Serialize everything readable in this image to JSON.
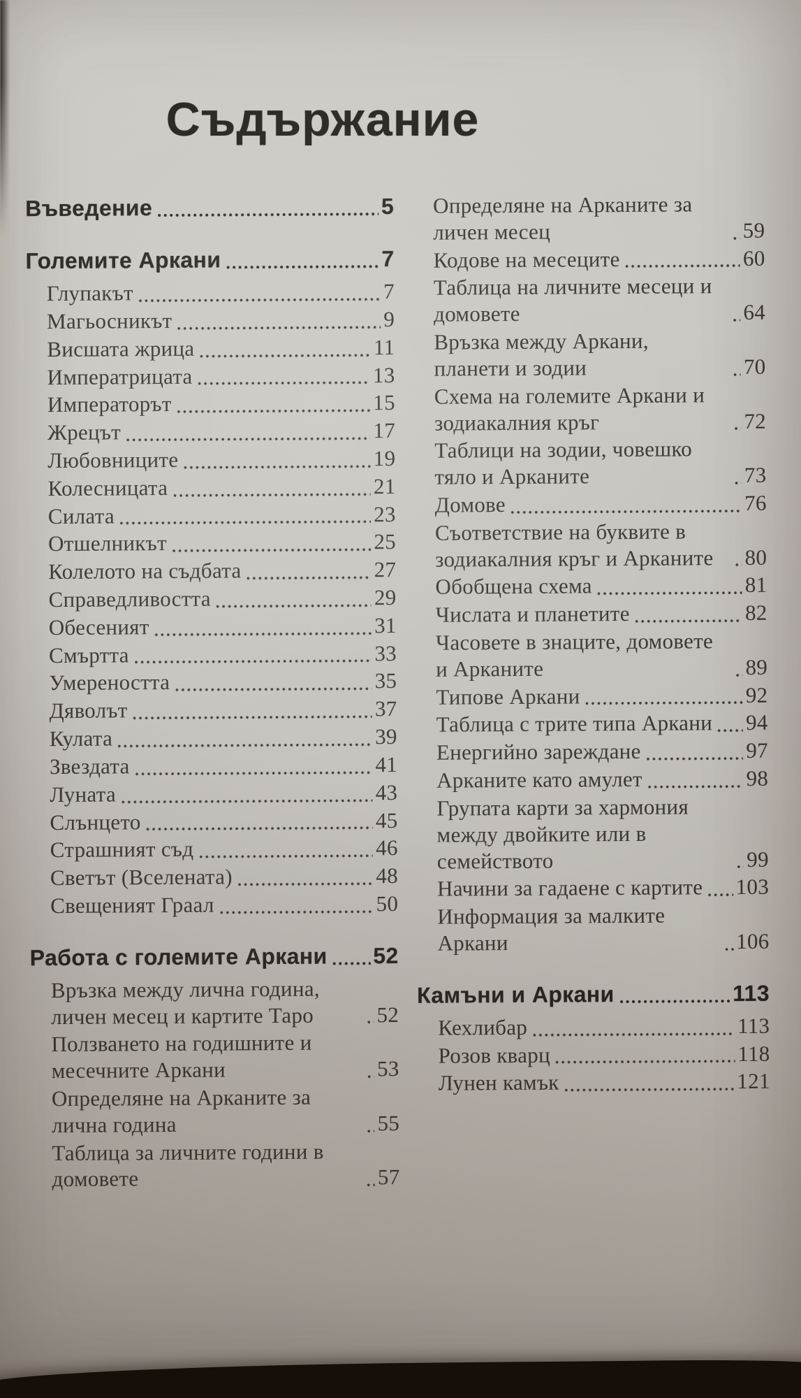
{
  "page": {
    "title": "Съдържание",
    "paper_color": "#c6c2bd",
    "ink_color": "#37332d",
    "heading_ink_color": "#262320"
  },
  "toc": {
    "left": [
      {
        "label": "Въведение",
        "page": "5",
        "bold": true
      },
      {
        "label": "Големите Аркани",
        "page": "7",
        "bold": true
      },
      {
        "label": "Глупакът",
        "page": "7"
      },
      {
        "label": "Магьосникът",
        "page": "9"
      },
      {
        "label": "Висшата жрица",
        "page": "11"
      },
      {
        "label": "Императрицата",
        "page": "13"
      },
      {
        "label": "Императорът",
        "page": "15"
      },
      {
        "label": "Жрецът",
        "page": "17"
      },
      {
        "label": "Любовниците",
        "page": "19"
      },
      {
        "label": "Колесницата",
        "page": "21"
      },
      {
        "label": "Силата",
        "page": "23"
      },
      {
        "label": "Отшелникът",
        "page": "25"
      },
      {
        "label": "Колелото на съдбата",
        "page": "27"
      },
      {
        "label": "Справедливостта",
        "page": "29"
      },
      {
        "label": "Обесеният",
        "page": "31"
      },
      {
        "label": "Смъртта",
        "page": "33"
      },
      {
        "label": "Умереността",
        "page": "35"
      },
      {
        "label": "Дяволът",
        "page": "37"
      },
      {
        "label": "Кулата",
        "page": "39"
      },
      {
        "label": "Звездата",
        "page": "41"
      },
      {
        "label": "Луната",
        "page": "43"
      },
      {
        "label": "Слънцето",
        "page": "45"
      },
      {
        "label": "Страшният съд",
        "page": "46"
      },
      {
        "label": "Светът (Вселената)",
        "page": "48"
      },
      {
        "label": "Свещеният Граал",
        "page": "50"
      },
      {
        "label": "Работа с големите Аркани",
        "page": "52",
        "bold": true
      },
      {
        "label": "Връзка между лична година, личен месец и картите Таро",
        "page": "52"
      },
      {
        "label": "Ползването на годишните и месечните Аркани",
        "page": "53"
      },
      {
        "label": "Определяне на Арканите за лична година",
        "page": "55"
      },
      {
        "label": "Таблица за личните години в домовете",
        "page": "57"
      }
    ],
    "right": [
      {
        "label": "Определяне на Арканите за личен месец",
        "page": "59"
      },
      {
        "label": "Кодове на месеците",
        "page": "60"
      },
      {
        "label": "Таблица на личните месеци и домовете",
        "page": "64"
      },
      {
        "label": "Връзка между Аркани, планети и зодии",
        "page": "70"
      },
      {
        "label": "Схема на големите Аркани и зодиакалния кръг",
        "page": "72"
      },
      {
        "label": "Таблици на зодии, човешко тяло и Арканите",
        "page": "73"
      },
      {
        "label": "Домове",
        "page": "76"
      },
      {
        "label": "Съответствие на буквите в зодиакалния кръг и Арканите",
        "page": "80"
      },
      {
        "label": "Обобщена схема",
        "page": "81"
      },
      {
        "label": "Числата и планетите",
        "page": "82"
      },
      {
        "label": "Часовете в знаците, домовете и Арканите",
        "page": "89"
      },
      {
        "label": "Типове Аркани",
        "page": "92"
      },
      {
        "label": "Таблица с трите типа Аркани",
        "page": "94"
      },
      {
        "label": "Енергийно зареждане",
        "page": "97"
      },
      {
        "label": "Арканите като амулет",
        "page": "98"
      },
      {
        "label": "Групата карти за хармония между двойките или в семейството",
        "page": "99"
      },
      {
        "label": "Начини за гадаене с картите",
        "page": "103"
      },
      {
        "label": "Информация за малките Аркани",
        "page": "106"
      },
      {
        "label": "Камъни и Аркани",
        "page": "113",
        "bold": true
      },
      {
        "label": "Кехлибар",
        "page": "113"
      },
      {
        "label": "Розов кварц",
        "page": "118"
      },
      {
        "label": "Лунен камък",
        "page": "121"
      }
    ]
  }
}
